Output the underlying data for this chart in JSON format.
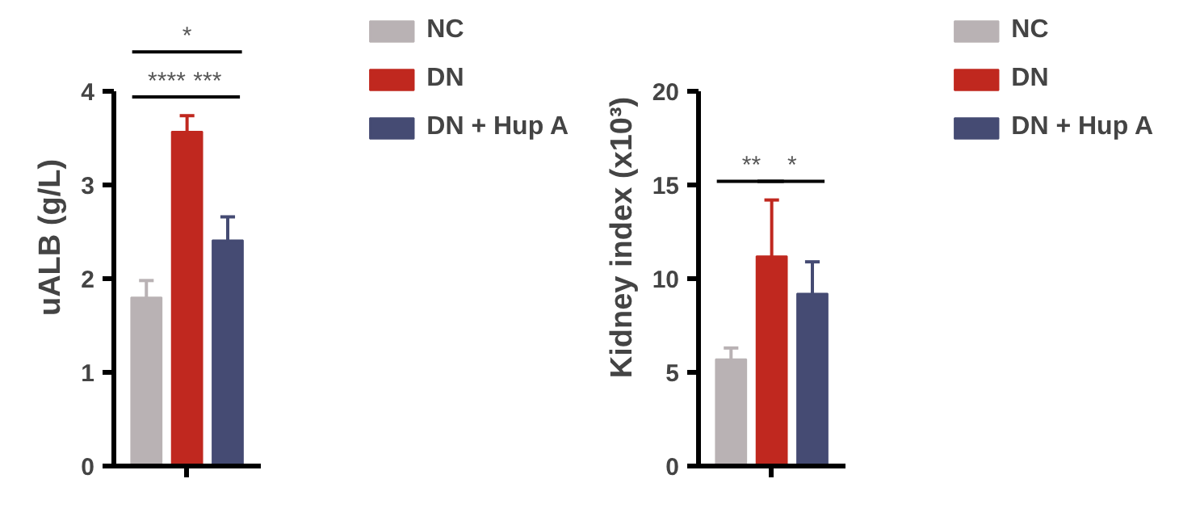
{
  "chart_data": [
    {
      "type": "bar",
      "categories": [
        null
      ],
      "ylabel": "uALB (g/L)",
      "ylim": [
        0,
        4
      ],
      "yticks": [
        0,
        1,
        2,
        3,
        4
      ],
      "legend": "right",
      "grid": false,
      "series": [
        {
          "name": "NC",
          "color": "#b9b2b4",
          "values": [
            1.8
          ],
          "errors": [
            [
              1.8,
              1.98
            ]
          ]
        },
        {
          "name": "DN",
          "color": "#c0281f",
          "values": [
            3.57
          ],
          "errors": [
            [
              3.57,
              3.74
            ]
          ]
        },
        {
          "name": "DN + Hup A",
          "color": "#454b73",
          "values": [
            2.41
          ],
          "errors": [
            [
              2.41,
              2.66
            ]
          ]
        }
      ],
      "annotations": [
        "*",
        "****",
        "***"
      ]
    },
    {
      "type": "bar",
      "categories": [
        null
      ],
      "ylabel": "Kidney index (x10³)",
      "ylim": [
        0,
        20
      ],
      "yticks": [
        0,
        5,
        10,
        15,
        20
      ],
      "legend": "right",
      "grid": false,
      "series": [
        {
          "name": "NC",
          "color": "#b9b2b4",
          "values": [
            5.7
          ],
          "errors": [
            [
              5.7,
              6.3
            ]
          ]
        },
        {
          "name": "DN",
          "color": "#c0281f",
          "values": [
            11.2
          ],
          "errors": [
            [
              11.2,
              14.2
            ]
          ]
        },
        {
          "name": "DN + Hup A",
          "color": "#454b73",
          "values": [
            9.2
          ],
          "errors": [
            [
              9.2,
              10.9
            ]
          ]
        }
      ],
      "annotations": [
        "**",
        "*"
      ]
    }
  ]
}
